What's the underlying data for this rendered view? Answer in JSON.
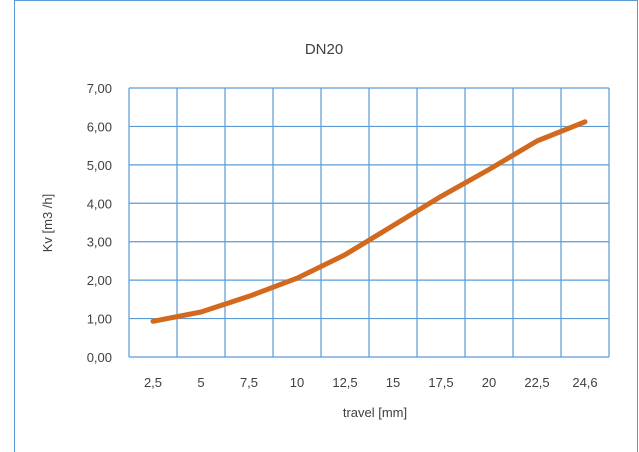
{
  "chart_data": {
    "type": "line",
    "title": "DN20",
    "xlabel": "travel [mm]",
    "ylabel": "Kv [m3 /h]",
    "categories": [
      "2,5",
      "5",
      "7,5",
      "10",
      "12,5",
      "15",
      "17,5",
      "20",
      "22,5",
      "24,6"
    ],
    "series": [
      {
        "values": [
          0.93,
          1.17,
          1.58,
          2.05,
          2.66,
          3.42,
          4.18,
          4.88,
          5.62,
          6.12
        ]
      }
    ],
    "ylim": [
      0,
      7
    ],
    "yticks": [
      "0,00",
      "1,00",
      "2,00",
      "3,00",
      "4,00",
      "5,00",
      "6,00",
      "7,00"
    ],
    "grid": true,
    "legend": "none",
    "colors": {
      "line": "#d2691e",
      "grid": "#5b9bd5",
      "frame": "#5b9bd5"
    }
  }
}
